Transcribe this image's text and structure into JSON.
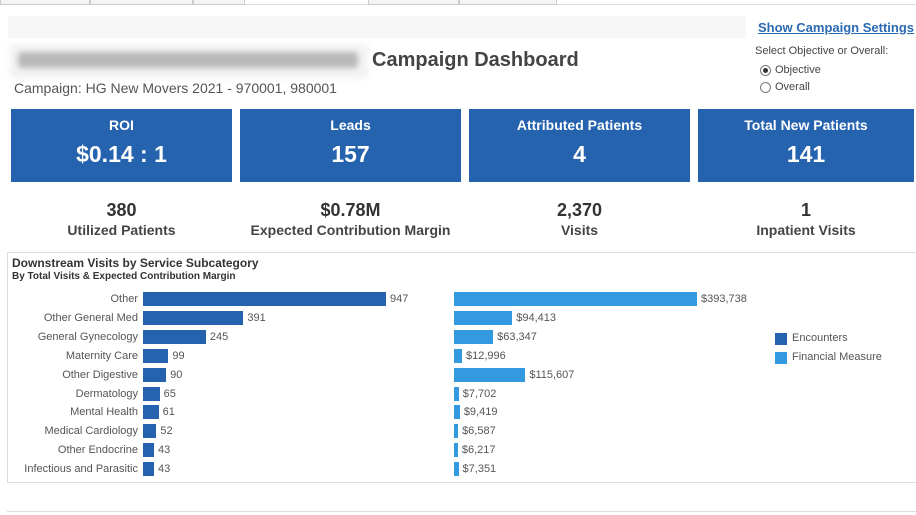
{
  "header": {
    "title": "Campaign Dashboard",
    "campaign": "Campaign: HG New Movers 2021 - 970001, 980001",
    "settings_link": "Show Campaign Settings",
    "selector_label": "Select Objective or Overall:",
    "options": [
      {
        "label": "Objective",
        "selected": true
      },
      {
        "label": "Overall",
        "selected": false
      }
    ]
  },
  "kpis": [
    {
      "label": "ROI",
      "value": "$0.14 : 1"
    },
    {
      "label": "Leads",
      "value": "157"
    },
    {
      "label": "Attributed Patients",
      "value": "4"
    },
    {
      "label": "Total New Patients",
      "value": "141"
    }
  ],
  "stats": [
    {
      "value": "380",
      "label": "Utilized Patients"
    },
    {
      "value": "$0.78M",
      "label": "Expected Contribution Margin"
    },
    {
      "value": "2,370",
      "label": "Visits"
    },
    {
      "value": "1",
      "label": "Inpatient Visits"
    }
  ],
  "colors": {
    "kpi": "#2563ae",
    "encounters": "#2563ae",
    "financial": "#3399e0"
  },
  "chart_data": {
    "type": "bar",
    "title": "Downstream Visits by Service Subcategory",
    "subtitle": "By Total Visits & Expected Contribution Margin",
    "categories": [
      "Other",
      "Other General Med",
      "General Gynecology",
      "Maternity Care",
      "Other Digestive",
      "Dermatology",
      "Mental Health",
      "Medical Cardiology",
      "Other Endocrine",
      "Infectious and Parasitic"
    ],
    "series": [
      {
        "name": "Encounters",
        "values": [
          947,
          391,
          245,
          99,
          90,
          65,
          61,
          52,
          43,
          43
        ],
        "labels": [
          "947",
          "391",
          "245",
          "99",
          "90",
          "65",
          "61",
          "52",
          "43",
          "43"
        ]
      },
      {
        "name": "Financial Measure",
        "values": [
          393738,
          94413,
          63347,
          12996,
          115607,
          7702,
          9419,
          6587,
          6217,
          7351
        ],
        "labels": [
          "$393,738",
          "$94,413",
          "$63,347",
          "$12,996",
          "$115,607",
          "$7,702",
          "$9,419",
          "$6,587",
          "$6,217",
          "$7,351"
        ]
      }
    ],
    "legend": "right"
  }
}
